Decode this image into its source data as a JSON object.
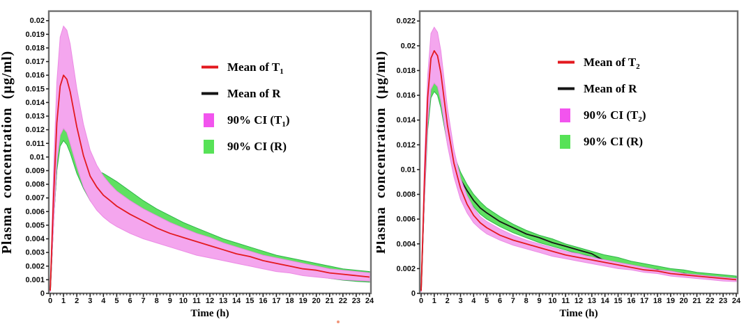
{
  "figure": {
    "background": "#ffffff",
    "frame_color": "#6f6f6f",
    "tick_color": "#1a1a1a",
    "artifact_dot_color": "#ed7c57"
  },
  "chart_data": [
    {
      "name": "left-chart",
      "type": "line",
      "title": "",
      "xlabel": "Time (h)",
      "ylabel": "Plasma concentration (µg/ml)",
      "xlim": [
        0,
        24
      ],
      "ylim": [
        0,
        0.0207
      ],
      "grid": false,
      "legend_position": "upper right inside",
      "xticks": [
        0,
        1,
        2,
        3,
        4,
        5,
        6,
        7,
        8,
        9,
        10,
        11,
        12,
        13,
        14,
        15,
        16,
        17,
        18,
        19,
        20,
        21,
        22,
        23,
        24
      ],
      "x_minor_step": 0.25,
      "yticks": [
        0,
        0.001,
        0.002,
        0.003,
        0.004,
        0.005,
        0.006,
        0.007,
        0.008,
        0.009,
        0.01,
        0.011,
        0.012,
        0.013,
        0.014,
        0.015,
        0.016,
        0.017,
        0.018,
        0.019,
        0.02
      ],
      "ytick_labels": [
        "0",
        "0.001",
        "0.002",
        "0.003",
        "0.004",
        "0.005",
        "0.006",
        "0.007",
        "0.008",
        "0.009",
        "0.01",
        "0.011",
        "0.012",
        "0.013",
        "0.014",
        "0.015",
        "0.016",
        "0.017",
        "0.018",
        "0.019",
        "0.02"
      ],
      "x": [
        0,
        0.25,
        0.5,
        0.75,
        1,
        1.25,
        1.5,
        2,
        2.5,
        3,
        3.5,
        4,
        4.5,
        5,
        6,
        7,
        8,
        9,
        10,
        11,
        12,
        13,
        14,
        15,
        16,
        17,
        18,
        19,
        20,
        21,
        22,
        23,
        24
      ],
      "series": [
        {
          "id": "mean-line-r",
          "name": "Mean of R",
          "type": "line",
          "color": "#161616",
          "width": 1.8,
          "values": [
            0.0002,
            0.0056,
            0.0094,
            0.0113,
            0.0118,
            0.0115,
            0.0108,
            0.0095,
            0.0086,
            0.008,
            0.0075,
            0.0072,
            0.0069,
            0.0066,
            0.006,
            0.0054,
            0.005,
            0.0046,
            0.0042,
            0.0038,
            0.0035,
            0.0032,
            0.003,
            0.0027,
            0.0025,
            0.0022,
            0.002,
            0.0019,
            0.0017,
            0.0015,
            0.0014,
            0.0013,
            0.0012
          ]
        },
        {
          "id": "ci-band-r",
          "name": "90% CI (R)",
          "type": "band",
          "color": "#5fe061",
          "edge": "#2eb44a",
          "upper": [
            0.0003,
            0.006,
            0.0098,
            0.0119,
            0.0124,
            0.0121,
            0.0113,
            0.0102,
            0.0095,
            0.0092,
            0.009,
            0.0088,
            0.0085,
            0.0082,
            0.0075,
            0.0068,
            0.0062,
            0.0057,
            0.0052,
            0.0048,
            0.0044,
            0.004,
            0.0037,
            0.0034,
            0.0031,
            0.0028,
            0.0026,
            0.0024,
            0.0022,
            0.002,
            0.0018,
            0.0017,
            0.0016
          ],
          "lower": [
            0.0001,
            0.0052,
            0.009,
            0.0108,
            0.0112,
            0.0109,
            0.0103,
            0.0088,
            0.0077,
            0.0068,
            0.0062,
            0.0057,
            0.0053,
            0.005,
            0.0045,
            0.0041,
            0.0038,
            0.0035,
            0.0032,
            0.0029,
            0.0027,
            0.0025,
            0.0023,
            0.0021,
            0.0019,
            0.0017,
            0.00155,
            0.0014,
            0.00125,
            0.0011,
            0.00097,
            0.00088,
            0.00082
          ]
        },
        {
          "id": "ci-band-t1",
          "name": "90% CI (T1)",
          "type": "band",
          "color": "#f4a6ee",
          "edge": "#eb8ae4",
          "upper": [
            0.0003,
            0.009,
            0.0155,
            0.0188,
            0.0196,
            0.0193,
            0.0183,
            0.015,
            0.0124,
            0.0105,
            0.0094,
            0.0086,
            0.008,
            0.0075,
            0.0068,
            0.0062,
            0.0057,
            0.0052,
            0.0048,
            0.0044,
            0.0041,
            0.0037,
            0.0034,
            0.0031,
            0.0028,
            0.0026,
            0.0024,
            0.0022,
            0.002,
            0.0018,
            0.0017,
            0.0016,
            0.0015
          ],
          "lower": [
            0.0001,
            0.005,
            0.0097,
            0.0116,
            0.0121,
            0.0118,
            0.011,
            0.0093,
            0.0078,
            0.0068,
            0.0061,
            0.0056,
            0.0052,
            0.0049,
            0.0044,
            0.004,
            0.0037,
            0.0034,
            0.0031,
            0.0028,
            0.0026,
            0.0024,
            0.0022,
            0.002,
            0.0018,
            0.0016,
            0.0015,
            0.0013,
            0.0012,
            0.0011,
            0.001,
            0.00095,
            0.0009
          ]
        },
        {
          "id": "mean-line-t1",
          "name": "Mean of T1",
          "type": "line",
          "color": "#e3191f",
          "width": 1.8,
          "values": [
            0.0002,
            0.007,
            0.0125,
            0.0152,
            0.016,
            0.0157,
            0.0148,
            0.0122,
            0.0101,
            0.0086,
            0.0078,
            0.0072,
            0.0068,
            0.0064,
            0.0058,
            0.0053,
            0.0048,
            0.0044,
            0.0041,
            0.0038,
            0.0035,
            0.0032,
            0.0029,
            0.0027,
            0.0024,
            0.0022,
            0.002,
            0.0018,
            0.0017,
            0.0015,
            0.0014,
            0.0013,
            0.0012
          ]
        }
      ],
      "legend": [
        {
          "text": "Mean of T",
          "sub": "1",
          "suffix": "",
          "swatch": "line",
          "color": "#e3191f"
        },
        {
          "text": "Mean of R",
          "sub": "",
          "suffix": "",
          "swatch": "line",
          "color": "#141414"
        },
        {
          "text": "90% CI (T",
          "sub": "1",
          "suffix": ")",
          "swatch": "rect",
          "color": "#f254ee"
        },
        {
          "text": "90% CI (R)",
          "sub": "",
          "suffix": "",
          "swatch": "rect",
          "color": "#57e257"
        }
      ]
    },
    {
      "name": "right-chart",
      "type": "line",
      "title": "",
      "xlabel": "Time (h)",
      "ylabel": "Plasma concentration (µg/ml)",
      "xlim": [
        0,
        24
      ],
      "ylim": [
        0,
        0.0228
      ],
      "grid": false,
      "legend_position": "upper right inside",
      "xticks": [
        0,
        1,
        2,
        3,
        4,
        5,
        6,
        7,
        8,
        9,
        10,
        11,
        12,
        13,
        14,
        15,
        16,
        17,
        18,
        19,
        20,
        21,
        22,
        23,
        24
      ],
      "x_minor_step": 0.25,
      "yticks": [
        0,
        0.002,
        0.004,
        0.006,
        0.008,
        0.01,
        0.012,
        0.014,
        0.016,
        0.018,
        0.02,
        0.022
      ],
      "ytick_labels": [
        "0",
        "0.002",
        "0.004",
        "0.006",
        "0.008",
        "0.01",
        "0.012",
        "0.014",
        "0.016",
        "0.018",
        "0.02",
        "0.022"
      ],
      "x": [
        0,
        0.25,
        0.5,
        0.75,
        1,
        1.25,
        1.5,
        2,
        2.5,
        3,
        3.5,
        4,
        4.5,
        5,
        6,
        7,
        8,
        9,
        10,
        11,
        12,
        13,
        14,
        15,
        16,
        17,
        18,
        19,
        20,
        21,
        22,
        23,
        24
      ],
      "series": [
        {
          "id": "ci-band-r",
          "name": "90% CI (R)",
          "type": "band",
          "color": "#5fe061",
          "edge": "#2eb44a",
          "upper": [
            0.0003,
            0.0092,
            0.0152,
            0.0173,
            0.0176,
            0.0174,
            0.0165,
            0.0135,
            0.0112,
            0.0098,
            0.0088,
            0.008,
            0.0074,
            0.0069,
            0.0062,
            0.0056,
            0.0051,
            0.0047,
            0.0044,
            0.004,
            0.0037,
            0.0034,
            0.0031,
            0.0029,
            0.0026,
            0.0024,
            0.0022,
            0.002,
            0.0019,
            0.0017,
            0.0016,
            0.0015,
            0.0014
          ],
          "lower": [
            0.0001,
            0.0074,
            0.0132,
            0.0158,
            0.0163,
            0.016,
            0.015,
            0.0121,
            0.0098,
            0.0086,
            0.0077,
            0.007,
            0.0064,
            0.006,
            0.0054,
            0.0049,
            0.0045,
            0.0041,
            0.0038,
            0.0035,
            0.0032,
            0.003,
            0.0027,
            0.0025,
            0.0023,
            0.0021,
            0.0019,
            0.0018,
            0.0016,
            0.0015,
            0.0014,
            0.0013,
            0.0012
          ]
        },
        {
          "id": "mean-line-r",
          "name": "Mean of R",
          "type": "line",
          "color": "#161616",
          "width": 1.8,
          "values": [
            0.0002,
            0.0083,
            0.0144,
            0.0167,
            0.0171,
            0.0168,
            0.0158,
            0.0128,
            0.0105,
            0.0092,
            0.0083,
            0.0075,
            0.0069,
            0.0065,
            0.0058,
            0.0053,
            0.0048,
            0.0045,
            0.0041,
            0.0038,
            0.0035,
            0.0032,
            0.0026,
            0.0024,
            0.0022,
            0.002,
            0.0019,
            0.0017,
            0.0016,
            0.0014,
            0.0013,
            0.0012,
            0.0011
          ]
        },
        {
          "id": "ci-band-t2",
          "name": "90% CI (T2)",
          "type": "band",
          "color": "#f4a6ee",
          "edge": "#eb8ae4",
          "upper": [
            0.0003,
            0.0105,
            0.0176,
            0.021,
            0.0215,
            0.0211,
            0.0196,
            0.015,
            0.0116,
            0.0093,
            0.0079,
            0.0069,
            0.0062,
            0.0058,
            0.0052,
            0.0047,
            0.0043,
            0.004,
            0.0037,
            0.0034,
            0.0032,
            0.0029,
            0.0027,
            0.0025,
            0.0023,
            0.0021,
            0.0019,
            0.0018,
            0.0016,
            0.0015,
            0.0014,
            0.0013,
            0.0012
          ],
          "lower": [
            0.0001,
            0.0075,
            0.0138,
            0.0165,
            0.017,
            0.0167,
            0.0156,
            0.012,
            0.0094,
            0.0076,
            0.0065,
            0.0057,
            0.0052,
            0.0048,
            0.0043,
            0.0039,
            0.0036,
            0.0033,
            0.003,
            0.0028,
            0.0026,
            0.0024,
            0.0022,
            0.002,
            0.0019,
            0.0017,
            0.0016,
            0.0014,
            0.0013,
            0.0012,
            0.0011,
            0.001,
            0.00095
          ]
        },
        {
          "id": "mean-line-t2",
          "name": "Mean of T2",
          "type": "line",
          "color": "#e3191f",
          "width": 1.8,
          "values": [
            0.0002,
            0.009,
            0.0158,
            0.019,
            0.0196,
            0.0192,
            0.0178,
            0.0136,
            0.0105,
            0.0085,
            0.0072,
            0.0063,
            0.0057,
            0.0053,
            0.0047,
            0.0043,
            0.004,
            0.0037,
            0.0034,
            0.0031,
            0.0029,
            0.0027,
            0.0025,
            0.0023,
            0.0021,
            0.0019,
            0.0018,
            0.0016,
            0.0015,
            0.0014,
            0.0013,
            0.0012,
            0.0011
          ]
        }
      ],
      "legend": [
        {
          "text": "Mean of T",
          "sub": "2",
          "suffix": "",
          "swatch": "line",
          "color": "#e3191f"
        },
        {
          "text": "Mean of R",
          "sub": "",
          "suffix": "",
          "swatch": "line",
          "color": "#141414"
        },
        {
          "text": "90% CI (T",
          "sub": "2",
          "suffix": ")",
          "swatch": "rect",
          "color": "#f254ee"
        },
        {
          "text": "90% CI (R)",
          "sub": "",
          "suffix": "",
          "swatch": "rect",
          "color": "#57e257"
        }
      ]
    }
  ]
}
